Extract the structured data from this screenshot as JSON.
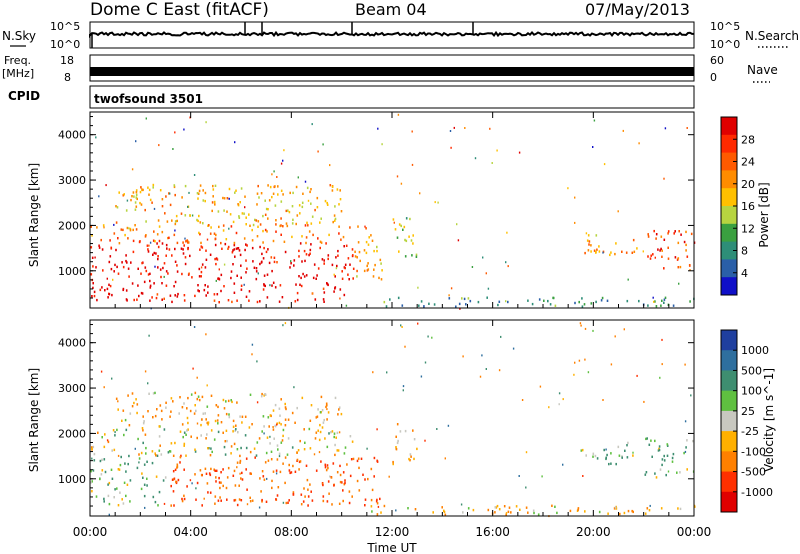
{
  "header": {
    "station": "Dome C East (fitACF)",
    "beam": "Beam 04",
    "date": "07/May/2013"
  },
  "top_panels": {
    "nsky_label": "N.Sky",
    "nsearch_label": "N.Search",
    "freq_label_1": "Freq.",
    "freq_label_2": "[MHz]",
    "nave_label": "Nave",
    "cpid_label": "CPID",
    "cpid_value": "twofsound 3501",
    "noise_left_ticks": [
      "10^5",
      "10^0"
    ],
    "noise_right_ticks": [
      "10^5",
      "10^0"
    ],
    "freq_ticks": [
      "18",
      "8"
    ],
    "nave_ticks": [
      "60",
      "0"
    ]
  },
  "power_colorbar": {
    "label": "Power [dB]",
    "ticks": [
      "28",
      "24",
      "20",
      "16",
      "12",
      "8",
      "4"
    ],
    "colors": [
      "#e00000",
      "#ff2a00",
      "#ff5a00",
      "#ff8c00",
      "#ffc000",
      "#b7d440",
      "#3aa040",
      "#2e8e78",
      "#2a5fa8",
      "#1010c8"
    ]
  },
  "velocity_colorbar": {
    "label": "Velocity [m s^-1]",
    "ticks": [
      "1000",
      "500",
      "100",
      "25",
      "-25",
      "-100",
      "-500",
      "-1000"
    ],
    "colors": [
      "#1f3f9f",
      "#2e6f9e",
      "#3e8e70",
      "#5fc040",
      "#c8c8c0",
      "#ffb000",
      "#ff8000",
      "#ff3000",
      "#e00000"
    ]
  },
  "axes": {
    "y_label": "Slant Range [km]",
    "x_label": "Time UT",
    "x_ticks": [
      "00:00",
      "04:00",
      "08:00",
      "12:00",
      "16:00",
      "20:00",
      "00:00"
    ],
    "y_ticks": [
      "4000",
      "3000",
      "2000",
      "1000"
    ]
  },
  "chart_data": [
    {
      "type": "heatmap",
      "title": "Power",
      "xlabel": "Time UT",
      "ylabel": "Slant Range [km]",
      "xlim_hours": [
        0,
        24
      ],
      "ylim_km": [
        180,
        4500
      ],
      "color_unit": "dB",
      "color_range": [
        0,
        30
      ],
      "blobs": [
        {
          "t0": 0.0,
          "t1": 10.5,
          "r0": 300,
          "r1": 1600,
          "value": 30
        },
        {
          "t0": 0.0,
          "t1": 10.5,
          "r0": 1600,
          "r1": 2000,
          "value": 22
        },
        {
          "t0": 1.0,
          "t1": 10.0,
          "r0": 2000,
          "r1": 2900,
          "value": 18
        },
        {
          "t0": 10.5,
          "t1": 11.6,
          "r0": 800,
          "r1": 2000,
          "value": 20
        },
        {
          "t0": 12.0,
          "t1": 13.0,
          "r0": 1300,
          "r1": 2200,
          "value": 14
        },
        {
          "t0": 19.4,
          "t1": 21.8,
          "r0": 1300,
          "r1": 1800,
          "value": 20
        },
        {
          "t0": 22.0,
          "t1": 24.0,
          "r0": 1000,
          "r1": 1900,
          "value": 26
        },
        {
          "t0": 11.0,
          "t1": 24.0,
          "r0": 200,
          "r1": 400,
          "value": 8
        }
      ]
    },
    {
      "type": "heatmap",
      "title": "Velocity",
      "xlabel": "Time UT",
      "ylabel": "Slant Range [km]",
      "xlim_hours": [
        0,
        24
      ],
      "ylim_km": [
        180,
        4500
      ],
      "color_unit": "m s^-1",
      "color_range": [
        -1000,
        1000
      ],
      "blobs": [
        {
          "t0": 0.0,
          "t1": 3.0,
          "r0": 400,
          "r1": 1500,
          "value": 100
        },
        {
          "t0": 3.0,
          "t1": 11.5,
          "r0": 400,
          "r1": 1500,
          "value": -500
        },
        {
          "t0": 0.0,
          "t1": 10.5,
          "r0": 1500,
          "r1": 2100,
          "value": 0
        },
        {
          "t0": 1.0,
          "t1": 10.0,
          "r0": 2100,
          "r1": 2900,
          "value": -100
        },
        {
          "t0": 12.0,
          "t1": 13.0,
          "r0": 1300,
          "r1": 2200,
          "value": -100
        },
        {
          "t0": 19.4,
          "t1": 21.8,
          "r0": 1300,
          "r1": 1800,
          "value": 100
        },
        {
          "t0": 22.0,
          "t1": 24.0,
          "r0": 1000,
          "r1": 1900,
          "value": 100
        },
        {
          "t0": 11.0,
          "t1": 24.0,
          "r0": 200,
          "r1": 400,
          "value": -100
        }
      ]
    }
  ]
}
